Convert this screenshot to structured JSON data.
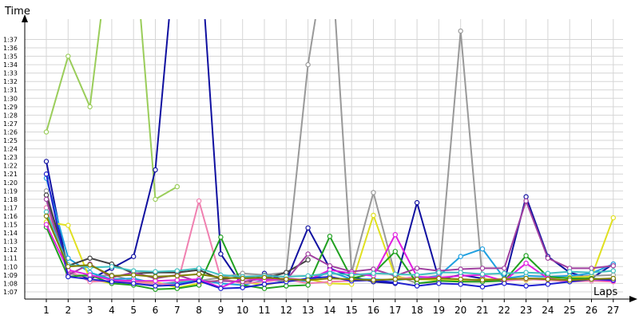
{
  "chart_data": {
    "type": "line",
    "title": "",
    "xlabel": "Laps",
    "ylabel": "Time",
    "grid": true,
    "legend": "none",
    "x": [
      1,
      2,
      3,
      4,
      5,
      6,
      7,
      8,
      9,
      10,
      11,
      12,
      13,
      14,
      15,
      16,
      17,
      18,
      19,
      20,
      21,
      22,
      23,
      24,
      25,
      26,
      27
    ],
    "y_ticks": [
      "1:07",
      "1:08",
      "1:09",
      "1:10",
      "1:11",
      "1:12",
      "1:13",
      "1:14",
      "1:15",
      "1:16",
      "1:17",
      "1:18",
      "1:19",
      "1:20",
      "1:21",
      "1:22",
      "1:23",
      "1:24",
      "1:25",
      "1:26",
      "1:27",
      "1:28",
      "1:29",
      "1:30",
      "1:31",
      "1:32",
      "1:33",
      "1:34",
      "1:35",
      "1:36",
      "1:37"
    ],
    "ylim": [
      66.5,
      98.5
    ],
    "ytick_start": 67,
    "ytick_end": 97,
    "series": [
      {
        "color": "#9acd5a",
        "values": [
          86,
          95,
          89,
          110,
          110,
          78,
          79.5,
          null,
          null,
          null,
          null,
          null,
          null,
          null,
          null,
          null,
          null,
          null,
          null,
          null,
          null,
          null,
          null,
          null,
          null,
          null,
          null
        ]
      },
      {
        "color": "#1010a0",
        "values": [
          82.5,
          69.3,
          68.5,
          69.8,
          71.2,
          81.5,
          110,
          110,
          71.5,
          67.7,
          69.2,
          68.3,
          74.6,
          69.8,
          68.8,
          68.2,
          68.0,
          77.6,
          68.5,
          69.0,
          68.6,
          68.2,
          78.3,
          71.2,
          69.3,
          68.6,
          70.3
        ]
      },
      {
        "color": "#999999",
        "values": [
          79,
          69.2,
          68.8,
          69.0,
          68.3,
          67.8,
          68.2,
          68.3,
          68.7,
          69.2,
          69.0,
          69.3,
          94,
          110,
          69.3,
          78.8,
          69.0,
          68.0,
          68.2,
          98,
          68.5,
          68.5,
          68.6,
          68.6,
          68.8,
          68.9,
          69.0
        ]
      },
      {
        "color": "#20a0e0",
        "values": [
          80.5,
          71,
          69.3,
          68.5,
          68.6,
          68.0,
          68.0,
          68.4,
          68.0,
          67.8,
          68.4,
          68.3,
          68.3,
          69.4,
          68.5,
          68.5,
          68.4,
          68.6,
          68.9,
          71.2,
          72.1,
          68.6,
          68.9,
          68.8,
          68.9,
          69.2,
          70.3
        ]
      },
      {
        "color": "#e0e020",
        "values": [
          75.3,
          74.9,
          68.5,
          68.0,
          68.1,
          68.2,
          67.5,
          68.0,
          68.4,
          68.2,
          67.8,
          68.3,
          68.5,
          68.0,
          67.9,
          76.1,
          68.8,
          68.5,
          68.4,
          68.3,
          68.5,
          68.5,
          68.4,
          68.6,
          68.7,
          68.8,
          75.8
        ]
      },
      {
        "color": "#f080b0",
        "values": [
          77,
          69.6,
          68.2,
          68.3,
          68.1,
          68.0,
          67.8,
          77.8,
          68.6,
          68.0,
          68.2,
          68.5,
          68.0,
          68.2,
          68.3,
          68.4,
          68.5,
          68.8,
          68.6,
          68.5,
          68.3,
          68.3,
          68.5,
          68.4,
          68.2,
          68.3,
          68.2
        ]
      },
      {
        "color": "#20a020",
        "values": [
          74.7,
          68.8,
          69.0,
          68.0,
          67.8,
          67.3,
          67.4,
          67.8,
          73.5,
          67.8,
          67.4,
          67.7,
          67.8,
          73.6,
          68.6,
          69.2,
          71.8,
          68.0,
          68.3,
          68.2,
          68.2,
          68.3,
          71.3,
          68.8,
          68.6,
          68.6,
          68.4
        ]
      },
      {
        "color": "#404040",
        "values": [
          78.5,
          70.1,
          71.0,
          70.3,
          69.2,
          69.3,
          69.3,
          69.6,
          68.5,
          68.8,
          68.6,
          69.3,
          70.8,
          null,
          null,
          null,
          null,
          null,
          null,
          null,
          null,
          null,
          null,
          null,
          null,
          null,
          null
        ]
      },
      {
        "color": "#a040a0",
        "values": [
          78,
          69.0,
          70.3,
          68.7,
          69.3,
          68.6,
          69.0,
          68.2,
          68.3,
          68.2,
          68.6,
          68.4,
          71.5,
          70.1,
          69.4,
          69.7,
          68.9,
          69.8,
          69.5,
          69.7,
          69.8,
          69.8,
          77.8,
          71.0,
          69.8,
          69.8,
          70.1
        ]
      },
      {
        "color": "#e020e0",
        "values": [
          75.0,
          69.6,
          69.0,
          68.4,
          68.3,
          68.3,
          68.4,
          68.5,
          67.5,
          68.6,
          68.4,
          68.6,
          68.4,
          69.6,
          69.2,
          68.9,
          73.8,
          68.8,
          68.7,
          68.9,
          69.0,
          68.3,
          70.4,
          68.6,
          68.3,
          68.5,
          68.3
        ]
      },
      {
        "color": "#2020d0",
        "values": [
          81,
          68.8,
          68.5,
          68.2,
          68.0,
          67.7,
          67.8,
          68.3,
          67.4,
          67.5,
          67.9,
          68.2,
          68.6,
          68.8,
          68.3,
          68.4,
          68.1,
          67.7,
          68.0,
          67.9,
          67.6,
          68.0,
          67.7,
          67.9,
          68.2,
          68.5,
          68.4
        ]
      },
      {
        "color": "#40c0c0",
        "values": [
          76.5,
          70.2,
          69.9,
          70.0,
          69.5,
          69.4,
          69.5,
          69.8,
          69.0,
          68.8,
          68.9,
          68.8,
          68.9,
          69.2,
          69.0,
          69.2,
          69.1,
          69.0,
          69.3,
          69.3,
          69.1,
          69.2,
          69.3,
          69.2,
          69.4,
          69.3,
          69.5
        ]
      },
      {
        "color": "#808000",
        "values": [
          76,
          70.0,
          70.2,
          68.9,
          69.0,
          68.8,
          68.9,
          69.1,
          68.7,
          68.6,
          68.7,
          68.5,
          68.4,
          68.6,
          68.5,
          68.4,
          68.5,
          68.5,
          68.6,
          68.5,
          68.4,
          68.5,
          68.6,
          68.5,
          68.4,
          68.5,
          68.6
        ]
      }
    ]
  }
}
